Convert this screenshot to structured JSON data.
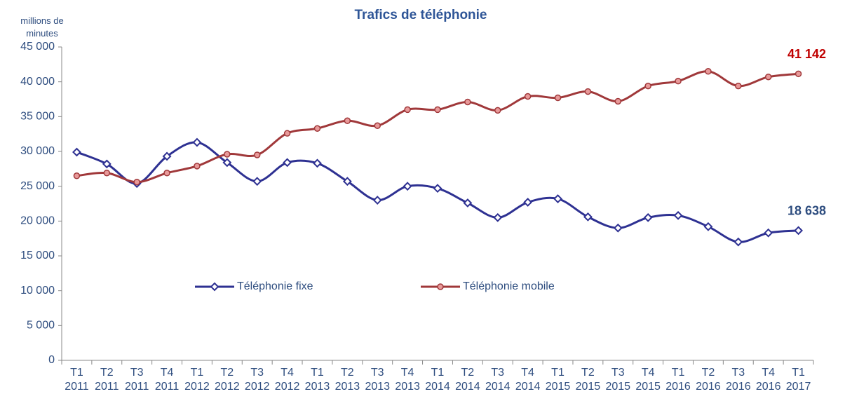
{
  "chart_data": {
    "type": "line",
    "title": "Trafics de téléphonie",
    "y_label": "millions de minutes",
    "categories": [
      "T1 2011",
      "T2 2011",
      "T3 2011",
      "T4 2011",
      "T1 2012",
      "T2 2012",
      "T3 2012",
      "T4 2012",
      "T1 2013",
      "T2 2013",
      "T3 2013",
      "T4 2013",
      "T1 2014",
      "T2 2014",
      "T3 2014",
      "T4 2014",
      "T1 2015",
      "T2 2015",
      "T3 2015",
      "T4 2015",
      "T1 2016",
      "T2 2016",
      "T3 2016",
      "T4 2016",
      "T1 2017"
    ],
    "series": [
      {
        "name": "Téléphonie fixe",
        "color": "#2e3192",
        "marker": "diamond",
        "values": [
          29900,
          28200,
          25400,
          29300,
          31300,
          28400,
          25700,
          28400,
          28300,
          25700,
          23000,
          25000,
          24700,
          22600,
          20500,
          22700,
          23200,
          20600,
          19000,
          20500,
          20800,
          19200,
          17000,
          18300,
          18638
        ],
        "value_labels": [
          null,
          null,
          null,
          null,
          null,
          null,
          null,
          null,
          null,
          null,
          null,
          null,
          null,
          null,
          null,
          null,
          null,
          null,
          null,
          null,
          null,
          null,
          null,
          null,
          "18 638"
        ],
        "label_color": "#2e4d7f"
      },
      {
        "name": "Téléphonie mobile",
        "color": "#a0383a",
        "marker": "circle",
        "values": [
          26500,
          26900,
          25600,
          26900,
          27900,
          29600,
          29500,
          32600,
          33300,
          34400,
          33700,
          36000,
          36000,
          37100,
          35900,
          37900,
          37700,
          38600,
          37200,
          39400,
          40100,
          41500,
          39400,
          40700,
          41142
        ],
        "value_labels": [
          null,
          null,
          null,
          null,
          null,
          null,
          null,
          null,
          null,
          null,
          null,
          null,
          null,
          null,
          null,
          null,
          null,
          null,
          null,
          null,
          null,
          null,
          null,
          null,
          "41 142"
        ],
        "label_color": "#c00000"
      }
    ],
    "ylim": [
      0,
      45000
    ],
    "yticks": [
      0,
      {
        "value": 5000,
        "label": "5 000"
      },
      {
        "value": 10000,
        "label": "10 000"
      },
      {
        "value": 15000,
        "label": "15 000"
      },
      {
        "value": 20000,
        "label": "20 000"
      },
      {
        "value": 25000,
        "label": "25 000"
      },
      {
        "value": 30000,
        "label": "30 000"
      },
      {
        "value": 35000,
        "label": "35 000"
      },
      {
        "value": 40000,
        "label": "40 000"
      },
      {
        "value": 45000,
        "label": "45 000"
      }
    ],
    "grid": false,
    "smooth": true,
    "legend": "center"
  }
}
